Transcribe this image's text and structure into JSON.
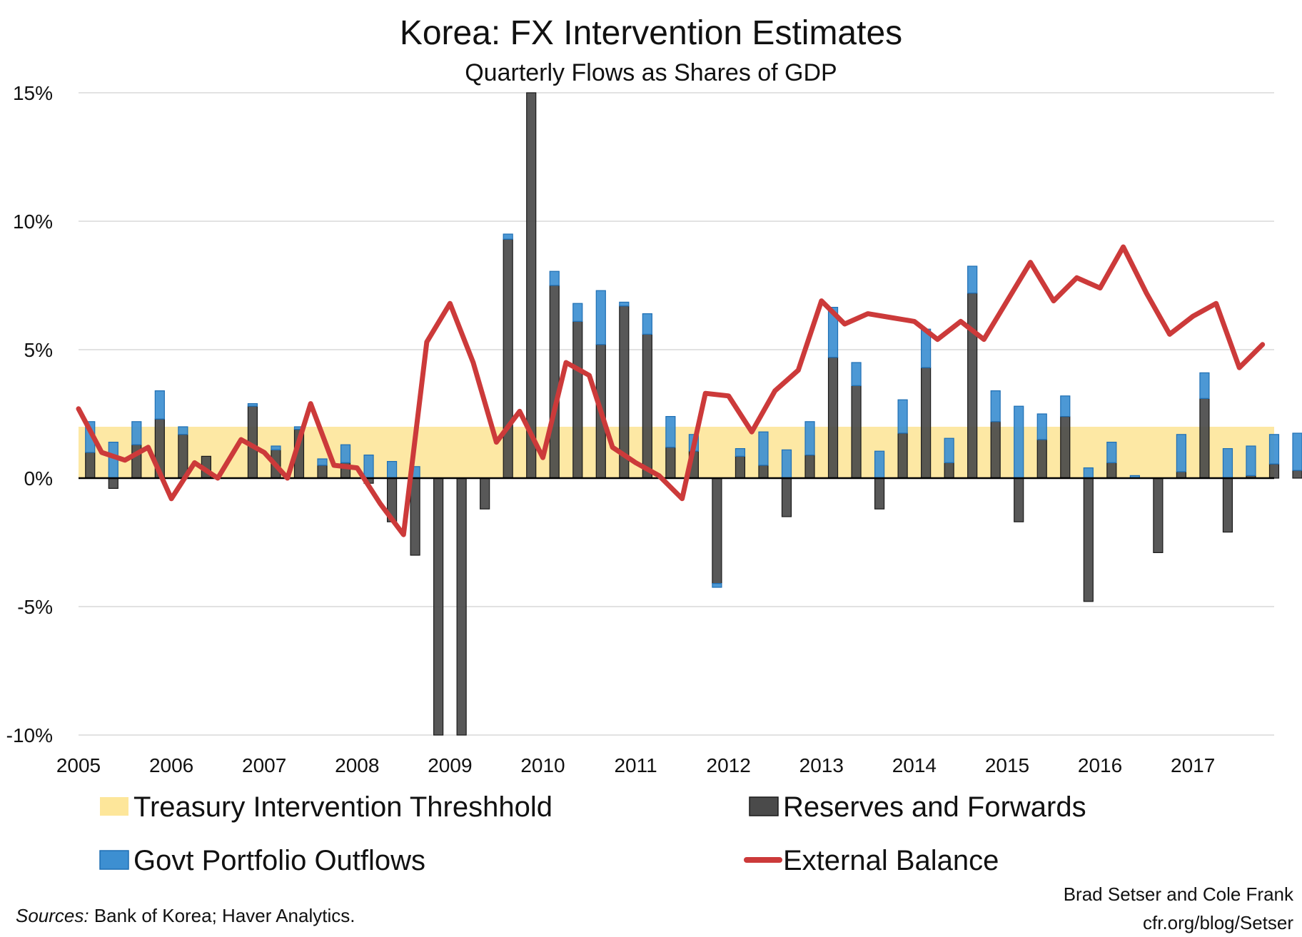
{
  "chart_data": {
    "type": "bar",
    "title": "Korea: FX Intervention Estimates",
    "subtitle": "Quarterly Flows as Shares of GDP",
    "ylim": [
      -10,
      15
    ],
    "y_unit": "%",
    "y_ticks": [
      15,
      10,
      5,
      0,
      -5,
      -10
    ],
    "y_tick_labels": [
      "15%",
      "10%",
      "5%",
      "0%",
      "-5%",
      "-10%"
    ],
    "x_tick_labels": [
      "2005",
      "2006",
      "2007",
      "2008",
      "2009",
      "2010",
      "2011",
      "2012",
      "2013",
      "2014",
      "2015",
      "2016",
      "2017"
    ],
    "quarters_per_year": 4,
    "threshold": {
      "name": "Treasury Intervention Threshhold",
      "low": 0,
      "high": 2
    },
    "series": [
      {
        "name": "Reserves and Forwards",
        "kind": "bar",
        "values": [
          1.0,
          -0.4,
          1.3,
          2.3,
          1.7,
          0.85,
          0.0,
          2.8,
          1.1,
          1.9,
          0.5,
          0.6,
          -0.2,
          -1.7,
          -3.0,
          -10.0,
          -10.0,
          -1.2,
          9.3,
          15.0,
          7.5,
          6.1,
          5.2,
          6.7,
          5.6,
          1.2,
          1.05,
          -4.1,
          0.85,
          0.5,
          -1.5,
          0.9,
          4.7,
          3.6,
          -1.2,
          1.75,
          4.3,
          0.6,
          7.2,
          2.2,
          -1.7,
          1.5,
          2.4,
          -4.8,
          0.6,
          0.0,
          -2.9,
          0.25,
          3.1,
          -2.1,
          0.1,
          0.55,
          0.3
        ]
      },
      {
        "name": "Govt Portfolio Outflows",
        "kind": "bar",
        "values": [
          1.2,
          1.4,
          0.9,
          1.1,
          0.3,
          0.0,
          0.0,
          0.1,
          0.15,
          0.1,
          0.25,
          0.7,
          0.9,
          0.65,
          0.45,
          0.0,
          0.0,
          0.0,
          0.2,
          0.0,
          0.55,
          0.7,
          2.1,
          0.15,
          0.8,
          1.2,
          0.65,
          -0.15,
          0.3,
          1.3,
          1.1,
          1.3,
          1.95,
          0.9,
          1.05,
          1.3,
          1.5,
          0.95,
          1.05,
          1.2,
          2.8,
          1.0,
          0.8,
          0.4,
          0.8,
          0.1,
          0.0,
          1.45,
          1.0,
          1.15,
          1.15,
          1.15,
          1.45
        ]
      },
      {
        "name": "External Balance",
        "kind": "line",
        "values": [
          2.7,
          1.0,
          0.7,
          1.2,
          -0.8,
          0.6,
          0.0,
          1.5,
          1.0,
          0.0,
          2.9,
          0.5,
          0.4,
          -1.0,
          -2.2,
          5.3,
          6.8,
          4.5,
          1.4,
          2.6,
          0.8,
          4.5,
          4.0,
          1.2,
          0.6,
          0.1,
          -0.8,
          3.3,
          3.2,
          1.8,
          3.4,
          4.2,
          6.9,
          6.0,
          6.4,
          6.25,
          6.1,
          5.4,
          6.1,
          5.4,
          6.9,
          8.4,
          6.9,
          7.8,
          7.4,
          9.0,
          7.2,
          5.6,
          6.3,
          6.8,
          4.3,
          5.2
        ]
      }
    ],
    "legend": [
      {
        "label": "Treasury Intervention Threshhold",
        "color": "#fde69a"
      },
      {
        "label": "Reserves and Forwards",
        "color": "#4a4a4a"
      },
      {
        "label": "Govt Portfolio Outflows",
        "color": "#3d8fd1"
      },
      {
        "label": "External Balance",
        "color": "#cc3a3a"
      }
    ],
    "colors": {
      "threshold": "#fde69a",
      "reserves": "#4a4a4a",
      "reserves_edge": "#1a1a1a",
      "portfolio": "#3d8fd1",
      "portfolio_edge": "#1f6fb4",
      "line": "#cc3a3a",
      "grid": "#d9d9d9"
    },
    "grid": true,
    "legend_position": "bottom",
    "source": {
      "label": "Sources:",
      "text": " Bank of Korea; Haver Analytics."
    },
    "credit_lines": [
      "Brad Setser and Cole Frank",
      "cfr.org/blog/Setser"
    ]
  }
}
